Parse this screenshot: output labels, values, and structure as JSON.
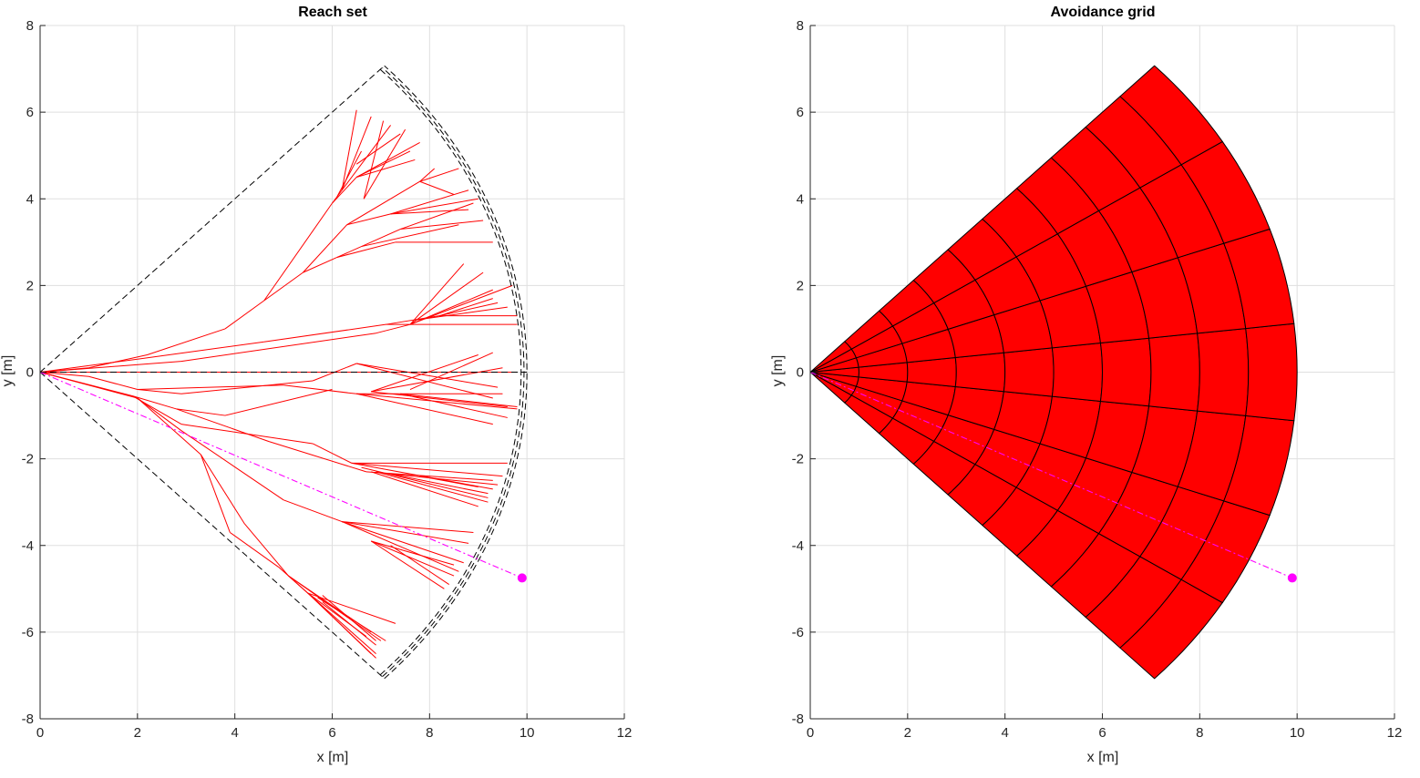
{
  "chart_data": [
    {
      "type": "line",
      "title": "Reach set",
      "xlabel": "x [m]",
      "ylabel": "y [m]",
      "xlim": [
        0,
        12
      ],
      "ylim": [
        -8,
        8
      ],
      "xticks": [
        0,
        2,
        4,
        6,
        8,
        10,
        12
      ],
      "yticks": [
        -8,
        -6,
        -4,
        -2,
        0,
        2,
        4,
        6,
        8
      ],
      "grid": true,
      "colors": {
        "tree": "#ff0000",
        "boundary": "#000000",
        "target": "#ff00ff"
      },
      "sector": {
        "radius": 10,
        "angle_deg": 45
      },
      "target": {
        "x": 9.9,
        "y": -4.75
      },
      "trajectory_segments": [
        [
          [
            0,
            0
          ],
          [
            1,
            0.1
          ]
        ],
        [
          [
            1,
            0.1
          ],
          [
            2.2,
            0.4
          ]
        ],
        [
          [
            2.2,
            0.4
          ],
          [
            3.8,
            1.0
          ]
        ],
        [
          [
            3.8,
            1.0
          ],
          [
            4.6,
            1.65
          ]
        ],
        [
          [
            4.6,
            1.65
          ],
          [
            5.4,
            2.3
          ]
        ],
        [
          [
            5.4,
            2.3
          ],
          [
            6.1,
            2.65
          ]
        ],
        [
          [
            6.1,
            2.65
          ],
          [
            7.3,
            3.0
          ]
        ],
        [
          [
            7.3,
            3.0
          ],
          [
            9.3,
            3.0
          ]
        ],
        [
          [
            6.1,
            2.65
          ],
          [
            7.4,
            3.3
          ]
        ],
        [
          [
            7.4,
            3.3
          ],
          [
            9.1,
            3.5
          ]
        ],
        [
          [
            7.4,
            3.3
          ],
          [
            8.9,
            3.9
          ]
        ],
        [
          [
            6.6,
            2.9
          ],
          [
            8.6,
            3.4
          ]
        ],
        [
          [
            5.4,
            2.3
          ],
          [
            6.3,
            3.4
          ]
        ],
        [
          [
            6.3,
            3.4
          ],
          [
            7.2,
            3.65
          ]
        ],
        [
          [
            7.2,
            3.65
          ],
          [
            8.8,
            4.2
          ]
        ],
        [
          [
            7.2,
            3.65
          ],
          [
            9.0,
            4.0
          ]
        ],
        [
          [
            7.2,
            3.65
          ],
          [
            8.8,
            3.75
          ]
        ],
        [
          [
            6.3,
            3.4
          ],
          [
            7.8,
            4.4
          ]
        ],
        [
          [
            7.8,
            4.4
          ],
          [
            8.6,
            4.7
          ]
        ],
        [
          [
            7.8,
            4.4
          ],
          [
            8.5,
            4.1
          ]
        ],
        [
          [
            7.8,
            4.4
          ],
          [
            8.1,
            4.7
          ]
        ],
        [
          [
            4.6,
            1.65
          ],
          [
            6.0,
            3.9
          ]
        ],
        [
          [
            6.0,
            3.9
          ],
          [
            6.5,
            4.5
          ]
        ],
        [
          [
            6.5,
            4.5
          ],
          [
            7.8,
            5.3
          ]
        ],
        [
          [
            6.5,
            4.5
          ],
          [
            7.6,
            5.1
          ]
        ],
        [
          [
            6.5,
            4.5
          ],
          [
            7.7,
            4.9
          ]
        ],
        [
          [
            6.0,
            3.9
          ],
          [
            6.2,
            4.2
          ]
        ],
        [
          [
            6.2,
            4.2
          ],
          [
            6.5,
            6.05
          ]
        ],
        [
          [
            6.2,
            4.2
          ],
          [
            6.8,
            5.9
          ]
        ],
        [
          [
            6.2,
            4.2
          ],
          [
            7.2,
            5.7
          ]
        ],
        [
          [
            6.5,
            4.8
          ],
          [
            7.4,
            5.5
          ]
        ],
        [
          [
            6.65,
            4.0
          ],
          [
            7.05,
            5.8
          ]
        ],
        [
          [
            6.65,
            4.0
          ],
          [
            7.5,
            5.6
          ]
        ],
        [
          [
            6.1,
            4.05
          ],
          [
            6.6,
            5.1
          ]
        ],
        [
          [
            0,
            0
          ],
          [
            2,
            0.3
          ]
        ],
        [
          [
            2,
            0.3
          ],
          [
            4.6,
            0.7
          ]
        ],
        [
          [
            4.6,
            0.7
          ],
          [
            7.1,
            1.1
          ]
        ],
        [
          [
            7.1,
            1.1
          ],
          [
            8.2,
            1.3
          ]
        ],
        [
          [
            8.2,
            1.3
          ],
          [
            9.8,
            1.3
          ]
        ],
        [
          [
            8.2,
            1.3
          ],
          [
            9.4,
            1.6
          ]
        ],
        [
          [
            8.2,
            1.3
          ],
          [
            9.3,
            1.7
          ]
        ],
        [
          [
            7.1,
            1.1
          ],
          [
            9.8,
            1.1
          ]
        ],
        [
          [
            7.7,
            1.2
          ],
          [
            9.6,
            1.5
          ]
        ],
        [
          [
            0,
            0
          ],
          [
            2.9,
            0.25
          ]
        ],
        [
          [
            2.9,
            0.25
          ],
          [
            6.9,
            0.9
          ]
        ],
        [
          [
            6.9,
            0.9
          ],
          [
            7.6,
            1.1
          ]
        ],
        [
          [
            7.6,
            1.1
          ],
          [
            8.7,
            2.5
          ]
        ],
        [
          [
            7.6,
            1.1
          ],
          [
            9.1,
            2.3
          ]
        ],
        [
          [
            7.6,
            1.1
          ],
          [
            9.7,
            2.0
          ]
        ],
        [
          [
            7.6,
            1.1
          ],
          [
            9.3,
            1.9
          ]
        ],
        [
          [
            0,
            0
          ],
          [
            9.7,
            0
          ]
        ],
        [
          [
            0,
            0
          ],
          [
            1,
            -0.1
          ]
        ],
        [
          [
            1,
            -0.1
          ],
          [
            2,
            -0.4
          ]
        ],
        [
          [
            2,
            -0.4
          ],
          [
            2.9,
            -0.5
          ]
        ],
        [
          [
            2.9,
            -0.5
          ],
          [
            5.6,
            -0.2
          ]
        ],
        [
          [
            5.6,
            -0.2
          ],
          [
            6.5,
            0.2
          ]
        ],
        [
          [
            6.5,
            0.2
          ],
          [
            9.4,
            -0.35
          ]
        ],
        [
          [
            6.5,
            0.2
          ],
          [
            9.3,
            -0.6
          ]
        ],
        [
          [
            6.8,
            -0.45
          ],
          [
            9.5,
            0.1
          ]
        ],
        [
          [
            6.8,
            -0.45
          ],
          [
            9.0,
            0.4
          ]
        ],
        [
          [
            6.8,
            -0.45
          ],
          [
            9.6,
            -0.8
          ]
        ],
        [
          [
            2,
            -0.4
          ],
          [
            5,
            -0.3
          ]
        ],
        [
          [
            5,
            -0.3
          ],
          [
            6.5,
            -0.5
          ]
        ],
        [
          [
            6.5,
            -0.5
          ],
          [
            9.8,
            -0.85
          ]
        ],
        [
          [
            6.5,
            -0.5
          ],
          [
            9.3,
            -1.2
          ]
        ],
        [
          [
            6.5,
            -0.5
          ],
          [
            9.5,
            -0.5
          ]
        ],
        [
          [
            7.4,
            -0.5
          ],
          [
            9.8,
            -0.8
          ]
        ],
        [
          [
            7.4,
            -0.5
          ],
          [
            9.6,
            -1.05
          ]
        ],
        [
          [
            7.6,
            -0.4
          ],
          [
            9.3,
            0.45
          ]
        ],
        [
          [
            0,
            0
          ],
          [
            1.9,
            -0.55
          ]
        ],
        [
          [
            1.9,
            -0.55
          ],
          [
            2.8,
            -0.85
          ]
        ],
        [
          [
            2.8,
            -0.85
          ],
          [
            3.8,
            -1.0
          ]
        ],
        [
          [
            3.8,
            -1.0
          ],
          [
            6.0,
            -0.4
          ]
        ],
        [
          [
            1.9,
            -0.55
          ],
          [
            2.9,
            -1.2
          ]
        ],
        [
          [
            2.9,
            -1.2
          ],
          [
            5.6,
            -1.65
          ]
        ],
        [
          [
            5.6,
            -1.65
          ],
          [
            6.4,
            -2.1
          ]
        ],
        [
          [
            6.4,
            -2.1
          ],
          [
            9.6,
            -2.1
          ]
        ],
        [
          [
            6.4,
            -2.1
          ],
          [
            9.5,
            -2.4
          ]
        ],
        [
          [
            6.4,
            -2.1
          ],
          [
            9.3,
            -2.7
          ]
        ],
        [
          [
            6.6,
            -2.2
          ],
          [
            9.2,
            -2.9
          ]
        ],
        [
          [
            6.8,
            -2.3
          ],
          [
            9.0,
            -3.1
          ]
        ],
        [
          [
            7.2,
            -2.35
          ],
          [
            9.4,
            -2.6
          ]
        ],
        [
          [
            7.2,
            -2.35
          ],
          [
            9.2,
            -2.8
          ]
        ],
        [
          [
            7.8,
            -2.4
          ],
          [
            9.0,
            -2.65
          ]
        ],
        [
          [
            2.8,
            -0.85
          ],
          [
            4.7,
            -1.6
          ]
        ],
        [
          [
            4.7,
            -1.6
          ],
          [
            6.7,
            -2.3
          ]
        ],
        [
          [
            6.7,
            -2.3
          ],
          [
            9.3,
            -2.5
          ]
        ],
        [
          [
            6.9,
            -2.3
          ],
          [
            9.2,
            -3.0
          ]
        ],
        [
          [
            0,
            0
          ],
          [
            2.0,
            -0.6
          ]
        ],
        [
          [
            2.0,
            -0.6
          ],
          [
            2.9,
            -1.35
          ]
        ],
        [
          [
            2.9,
            -1.35
          ],
          [
            5.0,
            -2.95
          ]
        ],
        [
          [
            5.0,
            -2.95
          ],
          [
            6.2,
            -3.45
          ]
        ],
        [
          [
            6.2,
            -3.45
          ],
          [
            8.9,
            -3.7
          ]
        ],
        [
          [
            6.2,
            -3.45
          ],
          [
            8.7,
            -4.4
          ]
        ],
        [
          [
            6.2,
            -3.45
          ],
          [
            8.8,
            -3.95
          ]
        ],
        [
          [
            6.8,
            -3.9
          ],
          [
            8.5,
            -4.7
          ]
        ],
        [
          [
            6.8,
            -3.9
          ],
          [
            8.3,
            -5.0
          ]
        ],
        [
          [
            6.8,
            -3.9
          ],
          [
            8.5,
            -4.45
          ]
        ],
        [
          [
            7.2,
            -4.0
          ],
          [
            8.4,
            -4.9
          ]
        ],
        [
          [
            6.2,
            -3.45
          ],
          [
            8.6,
            -4.6
          ]
        ],
        [
          [
            2.0,
            -0.6
          ],
          [
            3.3,
            -1.9
          ]
        ],
        [
          [
            3.3,
            -1.9
          ],
          [
            3.9,
            -3.7
          ]
        ],
        [
          [
            3.9,
            -3.7
          ],
          [
            4.9,
            -4.5
          ]
        ],
        [
          [
            4.9,
            -4.5
          ],
          [
            5.5,
            -5.1
          ]
        ],
        [
          [
            5.5,
            -5.1
          ],
          [
            7.3,
            -5.8
          ]
        ],
        [
          [
            5.5,
            -5.1
          ],
          [
            6.7,
            -6.1
          ]
        ],
        [
          [
            5.5,
            -5.1
          ],
          [
            6.9,
            -6.6
          ]
        ],
        [
          [
            5.5,
            -5.1
          ],
          [
            6.8,
            -6.5
          ]
        ],
        [
          [
            5.8,
            -5.3
          ],
          [
            6.9,
            -6.3
          ]
        ],
        [
          [
            3.3,
            -1.9
          ],
          [
            4.2,
            -3.5
          ]
        ],
        [
          [
            4.2,
            -3.5
          ],
          [
            5.1,
            -4.7
          ]
        ],
        [
          [
            5.1,
            -4.7
          ],
          [
            6.9,
            -6.5
          ]
        ],
        [
          [
            5.1,
            -4.7
          ],
          [
            7.0,
            -6.2
          ]
        ],
        [
          [
            5.1,
            -4.7
          ],
          [
            6.8,
            -6.0
          ]
        ],
        [
          [
            5.7,
            -5.2
          ],
          [
            7.1,
            -6.2
          ]
        ],
        [
          [
            5.8,
            -5.15
          ],
          [
            6.9,
            -6.2
          ]
        ]
      ]
    },
    {
      "type": "area",
      "title": "Avoidance grid",
      "xlabel": "x [m]",
      "ylabel": "y [m]",
      "xlim": [
        0,
        12
      ],
      "ylim": [
        -8,
        8
      ],
      "xticks": [
        0,
        2,
        4,
        6,
        8,
        10,
        12
      ],
      "yticks": [
        -8,
        -6,
        -4,
        -2,
        0,
        2,
        4,
        6,
        8
      ],
      "grid": true,
      "colors": {
        "fill": "#ff0000",
        "edge": "#000000",
        "target": "#ff00ff"
      },
      "sector": {
        "radius": 10,
        "angle_deg": 45,
        "radial_rings": 10,
        "angular_slices": 7
      },
      "target": {
        "x": 9.9,
        "y": -4.75
      }
    }
  ]
}
